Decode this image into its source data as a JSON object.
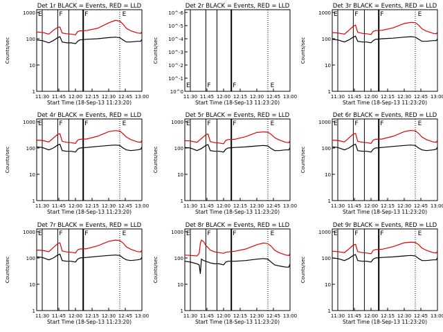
{
  "figure": {
    "ylabel": "Counts/sec",
    "xlabel": "Start Time (18-Sep-13 11:23:20)",
    "xticks": [
      "11:30",
      "11:45",
      "12:00",
      "12:15",
      "12:30",
      "12:45",
      "13:00"
    ],
    "yticks_log": [
      "1",
      "10",
      "100",
      "1000"
    ],
    "colors": {
      "events": "#000000",
      "lld": "#e00000",
      "axes": "#000000",
      "background": "#ffffff"
    }
  },
  "chart_data": [
    {
      "type": "line",
      "title": "Det 1r BLACK = Events, RED = LLD",
      "xlabel": "Start Time (18-Sep-13 11:23:20)",
      "ylabel": "Counts/sec",
      "yscale": "log",
      "ylim": [
        1,
        1000
      ],
      "markers": [
        "E",
        "F",
        "F",
        "E"
      ],
      "x": [
        "11:25",
        "11:30",
        "11:36",
        "11:40",
        "11:44",
        "11:46",
        "11:48",
        "11:52",
        "11:56",
        "12:00",
        "12:02",
        "12:04",
        "12:10",
        "12:20",
        "12:30",
        "12:36",
        "12:40",
        "12:43",
        "12:46",
        "12:50",
        "12:56",
        "12:59",
        "13:00"
      ],
      "series": [
        {
          "name": "Events",
          "color": "#000000",
          "values": [
            90,
            85,
            70,
            85,
            110,
            120,
            75,
            70,
            70,
            65,
            80,
            90,
            95,
            100,
            110,
            115,
            110,
            90,
            75,
            75,
            80,
            80,
            95
          ]
        },
        {
          "name": "LLD",
          "color": "#e00000",
          "values": [
            180,
            175,
            150,
            210,
            270,
            280,
            165,
            155,
            150,
            140,
            185,
            200,
            205,
            250,
            400,
            500,
            470,
            360,
            250,
            200,
            165,
            160,
            190
          ]
        }
      ]
    },
    {
      "type": "line",
      "title": "Det 2r BLACK = Events, RED = LLD",
      "xlabel": "Start Time (18-Sep-13 11:23:20)",
      "ylabel": "Counts/sec",
      "yscale": "log",
      "ylim": [
        1,
        1e-06
      ],
      "markers": [
        "E",
        "F",
        "F",
        "E"
      ],
      "yticks": [
        "10^0",
        "10^-1",
        "10^-2",
        "10^-3",
        "10^-4",
        "10^-5",
        "10^-6"
      ],
      "series": []
    },
    {
      "type": "line",
      "title": "Det 3r BLACK = Events, RED = LLD",
      "xlabel": "Start Time (18-Sep-13 11:23:20)",
      "ylabel": "Counts/sec",
      "yscale": "log",
      "ylim": [
        1,
        1000
      ],
      "markers": [
        "E",
        "F",
        "F",
        "E"
      ],
      "x": [
        "11:25",
        "11:30",
        "11:36",
        "11:40",
        "11:44",
        "11:46",
        "11:48",
        "11:52",
        "11:56",
        "12:00",
        "12:02",
        "12:04",
        "12:10",
        "12:20",
        "12:30",
        "12:36",
        "12:40",
        "12:43",
        "12:46",
        "12:50",
        "12:56",
        "12:59",
        "13:00"
      ],
      "series": [
        {
          "name": "Events",
          "color": "#000000",
          "values": [
            95,
            90,
            75,
            90,
            115,
            125,
            80,
            75,
            75,
            70,
            85,
            95,
            100,
            105,
            115,
            120,
            115,
            95,
            80,
            80,
            85,
            85,
            100
          ]
        },
        {
          "name": "LLD",
          "color": "#e00000",
          "values": [
            170,
            165,
            150,
            210,
            300,
            330,
            175,
            160,
            155,
            145,
            190,
            205,
            210,
            260,
            380,
            420,
            410,
            330,
            240,
            195,
            160,
            155,
            180
          ]
        }
      ]
    },
    {
      "type": "line",
      "title": "Det 4r BLACK = Events, RED = LLD",
      "xlabel": "Start Time (18-Sep-13 11:23:20)",
      "ylabel": "Counts/sec",
      "yscale": "log",
      "ylim": [
        1,
        1000
      ],
      "markers": [
        "E",
        "F",
        "F",
        "E"
      ],
      "x": [
        "11:25",
        "11:30",
        "11:36",
        "11:40",
        "11:44",
        "11:46",
        "11:48",
        "11:52",
        "11:56",
        "12:00",
        "12:02",
        "12:04",
        "12:10",
        "12:20",
        "12:30",
        "12:36",
        "12:40",
        "12:43",
        "12:46",
        "12:50",
        "12:56",
        "12:59",
        "13:00"
      ],
      "series": [
        {
          "name": "Events",
          "color": "#000000",
          "values": [
            110,
            105,
            85,
            100,
            130,
            140,
            80,
            75,
            75,
            70,
            90,
            100,
            105,
            115,
            125,
            130,
            125,
            100,
            85,
            80,
            85,
            90,
            110
          ]
        },
        {
          "name": "LLD",
          "color": "#e00000",
          "values": [
            200,
            195,
            170,
            240,
            330,
            350,
            180,
            165,
            160,
            150,
            200,
            215,
            220,
            280,
            420,
            460,
            440,
            350,
            260,
            210,
            170,
            165,
            200
          ]
        }
      ]
    },
    {
      "type": "line",
      "title": "Det 5r BLACK = Events, RED = LLD",
      "xlabel": "Start Time (18-Sep-13 11:23:20)",
      "ylabel": "Counts/sec",
      "yscale": "log",
      "ylim": [
        1,
        1000
      ],
      "markers": [
        "E",
        "F",
        "F",
        "E"
      ],
      "x": [
        "11:25",
        "11:30",
        "11:36",
        "11:40",
        "11:44",
        "11:46",
        "11:48",
        "11:52",
        "11:56",
        "12:00",
        "12:02",
        "12:04",
        "12:10",
        "12:20",
        "12:30",
        "12:36",
        "12:40",
        "12:43",
        "12:46",
        "12:50",
        "12:56",
        "12:59",
        "13:00"
      ],
      "series": [
        {
          "name": "Events",
          "color": "#000000",
          "values": [
            105,
            100,
            80,
            95,
            125,
            135,
            80,
            75,
            75,
            70,
            90,
            100,
            105,
            110,
            120,
            125,
            120,
            95,
            80,
            80,
            85,
            85,
            105
          ]
        },
        {
          "name": "LLD",
          "color": "#e00000",
          "values": [
            190,
            185,
            165,
            230,
            320,
            340,
            175,
            160,
            155,
            145,
            195,
            210,
            215,
            270,
            390,
            410,
            400,
            330,
            250,
            205,
            165,
            160,
            195
          ]
        }
      ]
    },
    {
      "type": "line",
      "title": "Det 6r BLACK = Events, RED = LLD",
      "xlabel": "Start Time (18-Sep-13 11:23:20)",
      "ylabel": "Counts/sec",
      "yscale": "log",
      "ylim": [
        1,
        1000
      ],
      "markers": [
        "E",
        "F",
        "F",
        "E"
      ],
      "x": [
        "11:25",
        "11:30",
        "11:36",
        "11:40",
        "11:44",
        "11:46",
        "11:48",
        "11:52",
        "11:56",
        "12:00",
        "12:02",
        "12:04",
        "12:10",
        "12:20",
        "12:30",
        "12:36",
        "12:40",
        "12:43",
        "12:46",
        "12:50",
        "12:56",
        "12:59",
        "13:00"
      ],
      "series": [
        {
          "name": "Events",
          "color": "#000000",
          "values": [
            110,
            105,
            85,
            100,
            130,
            140,
            80,
            75,
            75,
            70,
            90,
            100,
            105,
            115,
            125,
            130,
            125,
            100,
            85,
            80,
            85,
            90,
            110
          ]
        },
        {
          "name": "LLD",
          "color": "#e00000",
          "values": [
            200,
            195,
            170,
            240,
            340,
            360,
            180,
            165,
            160,
            150,
            200,
            215,
            220,
            280,
            420,
            470,
            450,
            360,
            260,
            210,
            170,
            165,
            200
          ]
        }
      ]
    },
    {
      "type": "line",
      "title": "Det 7r BLACK = Events, RED = LLD",
      "xlabel": "Start Time (18-Sep-13 11:23:20)",
      "ylabel": "Counts/sec",
      "yscale": "log",
      "ylim": [
        1,
        1000
      ],
      "markers": [
        "E",
        "F",
        "F",
        "E"
      ],
      "x": [
        "11:25",
        "11:30",
        "11:36",
        "11:40",
        "11:44",
        "11:46",
        "11:48",
        "11:52",
        "11:56",
        "12:00",
        "12:02",
        "12:04",
        "12:10",
        "12:20",
        "12:30",
        "12:36",
        "12:40",
        "12:43",
        "12:46",
        "12:50",
        "12:56",
        "12:59",
        "13:00"
      ],
      "series": [
        {
          "name": "Events",
          "color": "#000000",
          "values": [
            110,
            105,
            85,
            100,
            130,
            140,
            80,
            75,
            75,
            70,
            90,
            100,
            105,
            115,
            125,
            130,
            125,
            100,
            85,
            80,
            85,
            90,
            110
          ]
        },
        {
          "name": "LLD",
          "color": "#e00000",
          "values": [
            200,
            195,
            175,
            250,
            350,
            380,
            185,
            170,
            165,
            155,
            205,
            220,
            225,
            290,
            430,
            480,
            460,
            370,
            265,
            215,
            175,
            170,
            205
          ]
        }
      ]
    },
    {
      "type": "line",
      "title": "Det 8r BLACK = Events, RED = LLD",
      "xlabel": "Start Time (18-Sep-13 11:23:20)",
      "ylabel": "Counts/sec",
      "yscale": "log",
      "ylim": [
        1,
        1000
      ],
      "markers": [
        "E",
        "F",
        "F",
        "E"
      ],
      "x": [
        "11:25",
        "11:30",
        "11:36",
        "11:38",
        "11:39",
        "11:40",
        "11:42",
        "11:44",
        "11:46",
        "11:48",
        "11:52",
        "11:56",
        "12:00",
        "12:02",
        "12:04",
        "12:10",
        "12:20",
        "12:30",
        "12:36",
        "12:40",
        "12:43",
        "12:46",
        "12:50",
        "12:56",
        "12:59",
        "13:00"
      ],
      "series": [
        {
          "name": "Events",
          "color": "#000000",
          "values": [
            75,
            70,
            60,
            55,
            25,
            90,
            80,
            75,
            70,
            65,
            60,
            60,
            55,
            70,
            75,
            75,
            80,
            90,
            95,
            90,
            70,
            55,
            50,
            45,
            45,
            60
          ]
        },
        {
          "name": "LLD",
          "color": "#e00000",
          "values": [
            130,
            125,
            120,
            150,
            350,
            480,
            420,
            300,
            250,
            200,
            170,
            160,
            150,
            165,
            170,
            180,
            220,
            320,
            370,
            350,
            280,
            200,
            160,
            130,
            125,
            150
          ]
        }
      ]
    },
    {
      "type": "line",
      "title": "Det 9r BLACK = Events, RED = LLD",
      "xlabel": "Start Time (18-Sep-13 11:23:20)",
      "ylabel": "Counts/sec",
      "yscale": "log",
      "ylim": [
        1,
        1000
      ],
      "markers": [
        "E",
        "F",
        "F",
        "E"
      ],
      "x": [
        "11:25",
        "11:30",
        "11:36",
        "11:40",
        "11:44",
        "11:46",
        "11:48",
        "11:52",
        "11:56",
        "12:00",
        "12:02",
        "12:04",
        "12:10",
        "12:20",
        "12:30",
        "12:36",
        "12:40",
        "12:43",
        "12:46",
        "12:50",
        "12:56",
        "12:59",
        "13:00"
      ],
      "series": [
        {
          "name": "Events",
          "color": "#000000",
          "values": [
            100,
            95,
            80,
            95,
            125,
            135,
            80,
            75,
            75,
            70,
            90,
            100,
            105,
            110,
            120,
            125,
            120,
            95,
            80,
            80,
            85,
            85,
            105
          ]
        },
        {
          "name": "LLD",
          "color": "#e00000",
          "values": [
            180,
            175,
            160,
            220,
            310,
            330,
            175,
            160,
            155,
            145,
            195,
            210,
            215,
            270,
            380,
            400,
            390,
            320,
            240,
            195,
            160,
            155,
            185
          ]
        }
      ]
    }
  ]
}
